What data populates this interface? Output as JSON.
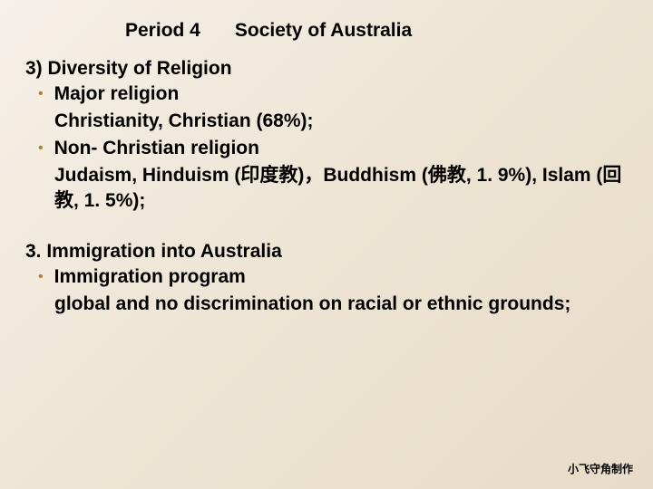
{
  "header": {
    "period": "Period 4",
    "title": "Society  of Australia"
  },
  "section1": {
    "heading": "3) Diversity of Religion",
    "bullets": [
      {
        "label": "Major religion",
        "body": "Christianity, Christian (68%);"
      },
      {
        "label": "Non- Christian religion",
        "body": "Judaism, Hinduism (印度教)，Buddhism (佛教, 1. 9%), Islam (回教, 1. 5%);"
      }
    ]
  },
  "section2": {
    "heading": "3. Immigration into Australia",
    "bullets": [
      {
        "label": "Immigration program",
        "body": "global and no discrimination on racial or ethnic grounds;"
      }
    ]
  },
  "footer": {
    "text": "小飞守角制作"
  },
  "style": {
    "background_gradient": [
      "#f5f0e8",
      "#ede4d3",
      "#e8dcc8"
    ],
    "text_color": "#000000",
    "bullet_color": "#b08030",
    "heading_fontsize": 21,
    "body_fontsize": 21,
    "footer_fontsize": 12,
    "font_weight": "bold"
  }
}
